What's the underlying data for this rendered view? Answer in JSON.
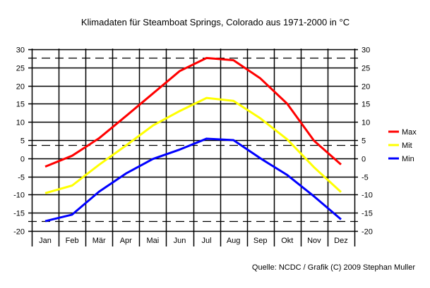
{
  "chart_data": {
    "type": "line",
    "title": "Klimadaten für Steamboat Springs, Colorado aus 1971-2000 in °C",
    "categories": [
      "Jan",
      "Feb",
      "Mär",
      "Apr",
      "Mai",
      "Jun",
      "Jul",
      "Aug",
      "Sep",
      "Okt",
      "Nov",
      "Dez"
    ],
    "ylim": [
      -20,
      30
    ],
    "yticks": [
      30,
      25,
      20,
      15,
      10,
      5,
      0,
      -5,
      -10,
      -15,
      -20
    ],
    "grid": true,
    "legend_placement": "right",
    "series": [
      {
        "name": "Max",
        "color": "#ff0000",
        "values": [
          -2.3,
          0.7,
          5.5,
          11.6,
          17.8,
          24.0,
          27.6,
          27.0,
          22.0,
          15.0,
          4.8,
          -1.7
        ]
      },
      {
        "name": "Mit",
        "color": "#ffff00",
        "values": [
          -9.6,
          -7.5,
          -1.8,
          3.5,
          9.0,
          13.0,
          16.6,
          15.8,
          11.0,
          5.2,
          -2.5,
          -9.3
        ]
      },
      {
        "name": "Min",
        "color": "#0000ff",
        "values": [
          -17.3,
          -15.5,
          -9.2,
          -4.2,
          -0.2,
          2.4,
          5.4,
          5.0,
          0.0,
          -4.6,
          -10.5,
          -16.8
        ]
      }
    ],
    "reference_lines": [
      27.6,
      3.6,
      -17.3
    ],
    "source": "Quelle: NCDC / Grafik (C) 2009 Stephan Muller"
  }
}
